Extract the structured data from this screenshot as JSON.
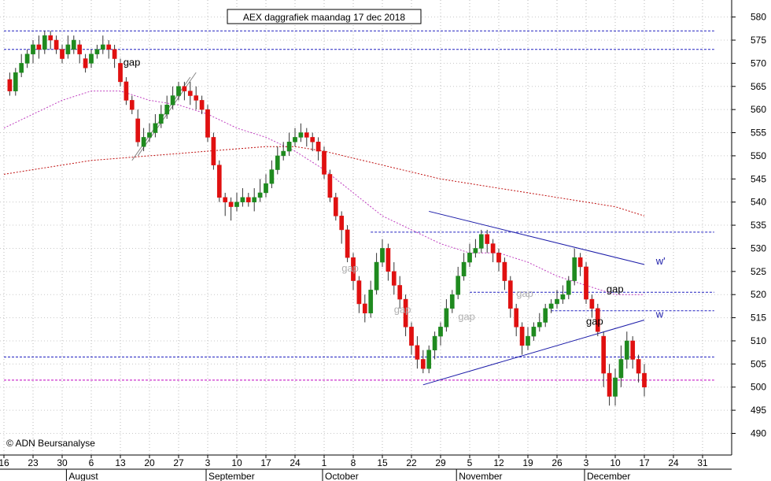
{
  "chart_data": {
    "type": "candlestick",
    "title": "AEX daggrafiek maandag 17 dec 2018",
    "copyright": "© ADN Beursanalyse",
    "ylim": [
      486,
      583
    ],
    "y_ticks": [
      490,
      495,
      500,
      505,
      510,
      515,
      520,
      525,
      530,
      535,
      540,
      545,
      550,
      555,
      560,
      565,
      570,
      575,
      580
    ],
    "date_ticks": [
      {
        "label": "16",
        "i": -1
      },
      {
        "label": "23",
        "i": 4
      },
      {
        "label": "30",
        "i": 9
      },
      {
        "label": "6",
        "i": 14
      },
      {
        "label": "13",
        "i": 19
      },
      {
        "label": "20",
        "i": 24
      },
      {
        "label": "27",
        "i": 29
      },
      {
        "label": "3",
        "i": 34
      },
      {
        "label": "10",
        "i": 39
      },
      {
        "label": "17",
        "i": 44
      },
      {
        "label": "24",
        "i": 49
      },
      {
        "label": "1",
        "i": 54
      },
      {
        "label": "8",
        "i": 59
      },
      {
        "label": "15",
        "i": 64
      },
      {
        "label": "22",
        "i": 69
      },
      {
        "label": "29",
        "i": 74
      },
      {
        "label": "5",
        "i": 79
      },
      {
        "label": "12",
        "i": 84
      },
      {
        "label": "19",
        "i": 89
      },
      {
        "label": "26",
        "i": 94
      },
      {
        "label": "3",
        "i": 99
      },
      {
        "label": "10",
        "i": 104
      },
      {
        "label": "17",
        "i": 109
      },
      {
        "label": "24",
        "i": 114
      },
      {
        "label": "31",
        "i": 119
      }
    ],
    "months": [
      {
        "label": "August",
        "i": 10
      },
      {
        "label": "September",
        "i": 34
      },
      {
        "label": "October",
        "i": 54
      },
      {
        "label": "November",
        "i": 77
      },
      {
        "label": "December",
        "i": 99
      }
    ],
    "candles": [
      [
        566.5,
        564,
        568,
        563
      ],
      [
        564,
        568,
        569,
        563
      ],
      [
        568,
        570,
        572,
        567
      ],
      [
        570,
        572,
        573,
        569
      ],
      [
        572,
        574,
        575,
        570
      ],
      [
        574,
        573,
        576,
        571
      ],
      [
        573,
        576,
        577,
        572
      ],
      [
        576,
        575,
        577,
        573
      ],
      [
        575,
        573,
        576,
        572
      ],
      [
        573,
        571,
        574,
        570
      ],
      [
        572,
        574,
        576,
        571
      ],
      [
        573,
        575,
        576,
        572
      ],
      [
        574,
        572,
        575,
        570
      ],
      [
        571,
        569,
        572,
        568
      ],
      [
        570,
        572,
        573,
        569
      ],
      [
        572,
        573,
        574,
        571
      ],
      [
        573,
        574,
        576,
        572
      ],
      [
        574,
        573,
        575,
        571
      ],
      [
        573,
        571,
        574,
        569
      ],
      [
        570,
        566,
        571,
        565
      ],
      [
        566,
        562,
        567,
        561
      ],
      [
        562,
        560,
        563,
        559
      ],
      [
        558,
        553,
        560,
        552
      ],
      [
        552,
        554,
        556,
        551
      ],
      [
        554,
        555,
        557,
        553
      ],
      [
        555,
        557,
        559,
        554
      ],
      [
        557,
        559,
        561,
        556
      ],
      [
        559,
        561,
        563,
        558
      ],
      [
        561,
        563,
        565,
        560
      ],
      [
        563,
        565,
        566,
        562
      ],
      [
        565,
        564,
        566,
        562
      ],
      [
        564,
        563,
        566,
        561
      ],
      [
        563,
        562,
        565,
        560
      ],
      [
        562,
        560,
        563,
        559
      ],
      [
        560,
        554,
        561,
        553
      ],
      [
        554,
        548,
        555,
        547
      ],
      [
        548,
        541,
        549,
        540
      ],
      [
        541,
        540,
        542,
        537
      ],
      [
        540,
        539,
        541,
        536
      ],
      [
        539,
        540,
        542,
        538
      ],
      [
        540,
        541,
        543,
        539
      ],
      [
        541,
        540,
        542,
        539
      ],
      [
        540,
        541,
        543,
        538
      ],
      [
        541,
        542,
        545,
        540
      ],
      [
        542,
        544,
        546,
        541
      ],
      [
        544,
        547,
        549,
        543
      ],
      [
        547,
        550,
        552,
        546
      ],
      [
        550,
        551,
        553,
        549
      ],
      [
        551,
        553,
        555,
        550
      ],
      [
        553,
        554,
        556,
        552
      ],
      [
        554,
        555,
        557,
        553
      ],
      [
        555,
        554,
        556,
        552
      ],
      [
        554,
        553,
        555,
        551
      ],
      [
        553,
        551,
        554,
        549
      ],
      [
        551,
        546,
        552,
        545
      ],
      [
        546,
        541,
        547,
        540
      ],
      [
        541,
        537,
        542,
        536
      ],
      [
        537,
        534,
        538,
        531
      ],
      [
        534,
        528,
        535,
        527
      ],
      [
        528,
        523,
        529,
        521
      ],
      [
        523,
        518,
        524,
        516
      ],
      [
        518,
        516,
        520,
        514
      ],
      [
        516,
        521,
        523,
        515
      ],
      [
        521,
        527,
        529,
        520
      ],
      [
        527,
        530,
        532,
        526
      ],
      [
        530,
        525,
        531,
        523
      ],
      [
        525,
        522,
        527,
        520
      ],
      [
        522,
        519,
        524,
        517
      ],
      [
        519,
        513,
        520,
        511
      ],
      [
        513,
        509,
        514,
        507
      ],
      [
        509,
        506,
        511,
        504
      ],
      [
        506,
        504,
        508,
        503
      ],
      [
        504,
        508,
        509,
        503
      ],
      [
        508,
        511,
        512,
        506
      ],
      [
        511,
        513,
        514,
        509
      ],
      [
        513,
        517,
        519,
        512
      ],
      [
        517,
        520,
        521,
        516
      ],
      [
        520,
        524,
        526,
        519
      ],
      [
        524,
        527,
        529,
        523
      ],
      [
        527,
        529,
        531,
        526
      ],
      [
        529,
        530,
        532,
        528
      ],
      [
        530,
        533,
        534,
        529
      ],
      [
        533,
        531,
        534,
        529
      ],
      [
        531,
        529,
        532,
        527
      ],
      [
        529,
        527,
        530,
        525
      ],
      [
        527,
        523,
        528,
        521
      ],
      [
        523,
        517,
        524,
        515
      ],
      [
        517,
        513,
        518,
        511
      ],
      [
        513,
        509,
        514,
        507
      ],
      [
        509,
        511,
        513,
        508
      ],
      [
        511,
        513,
        514,
        510
      ],
      [
        513,
        514,
        516,
        512
      ],
      [
        514,
        517,
        518,
        513
      ],
      [
        517,
        518,
        519,
        516
      ],
      [
        518,
        519,
        521,
        517
      ],
      [
        519,
        520,
        522,
        518
      ],
      [
        520,
        523,
        524,
        519
      ],
      [
        523,
        528,
        530,
        522
      ],
      [
        528,
        526,
        529,
        524
      ],
      [
        526,
        519,
        527,
        518
      ],
      [
        519,
        517,
        520,
        515
      ],
      [
        517,
        512,
        518,
        511
      ],
      [
        511,
        503,
        512,
        500
      ],
      [
        503,
        498,
        505,
        496
      ],
      [
        498,
        502,
        504,
        496
      ],
      [
        502,
        506,
        509,
        500
      ],
      [
        506,
        510,
        512,
        504
      ],
      [
        510,
        506,
        511,
        504
      ],
      [
        506,
        503,
        507,
        501
      ],
      [
        503,
        500,
        505,
        498
      ]
    ],
    "ma_short": [
      [
        -1,
        556
      ],
      [
        4,
        559
      ],
      [
        9,
        562
      ],
      [
        14,
        564
      ],
      [
        19,
        564
      ],
      [
        24,
        562
      ],
      [
        29,
        561
      ],
      [
        34,
        559
      ],
      [
        39,
        556
      ],
      [
        44,
        554
      ],
      [
        49,
        551
      ],
      [
        54,
        547
      ],
      [
        59,
        542
      ],
      [
        64,
        537
      ],
      [
        69,
        534
      ],
      [
        74,
        531
      ],
      [
        79,
        529
      ],
      [
        84,
        529
      ],
      [
        89,
        527
      ],
      [
        94,
        524
      ],
      [
        99,
        522
      ],
      [
        104,
        520
      ],
      [
        109,
        520
      ]
    ],
    "ma_long": [
      [
        -1,
        546
      ],
      [
        4,
        547
      ],
      [
        9,
        548
      ],
      [
        14,
        549
      ],
      [
        19,
        549.5
      ],
      [
        24,
        550
      ],
      [
        29,
        550.5
      ],
      [
        34,
        551
      ],
      [
        39,
        551.5
      ],
      [
        44,
        552
      ],
      [
        49,
        552
      ],
      [
        54,
        551
      ],
      [
        59,
        549.5
      ],
      [
        64,
        548
      ],
      [
        69,
        546.5
      ],
      [
        74,
        545
      ],
      [
        79,
        544
      ],
      [
        84,
        543
      ],
      [
        89,
        542
      ],
      [
        94,
        541
      ],
      [
        99,
        540
      ],
      [
        104,
        539
      ],
      [
        109,
        537
      ]
    ],
    "hlines": [
      {
        "y": 577,
        "color": "#2020c0",
        "x_from_i": -1,
        "x_to_i": 121
      },
      {
        "y": 573,
        "color": "#2020c0",
        "x_from_i": -1,
        "x_to_i": 121
      },
      {
        "y": 533.5,
        "color": "#2020c0",
        "x_from_i": 62,
        "x_to_i": 121
      },
      {
        "y": 520.5,
        "color": "#2020c0",
        "x_from_i": 79,
        "x_to_i": 121
      },
      {
        "y": 516.5,
        "color": "#2020c0",
        "x_from_i": 93,
        "x_to_i": 121
      },
      {
        "y": 506.5,
        "color": "#2020c0",
        "x_from_i": -1,
        "x_to_i": 121
      },
      {
        "y": 501.5,
        "color": "#c000c0",
        "x_from_i": -1,
        "x_to_i": 121
      }
    ],
    "trendlines": [
      {
        "from_i": 72,
        "from_y": 538,
        "to_i": 109,
        "to_y": 526.5,
        "color": "#1a1aa8"
      },
      {
        "from_i": 71,
        "from_y": 500.5,
        "to_i": 109,
        "to_y": 514.5,
        "color": "#1a1aa8"
      },
      {
        "from_i": 21,
        "from_y": 549,
        "to_i": 31,
        "to_y": 567,
        "color": "#888888"
      },
      {
        "from_i": 22,
        "from_y": 550,
        "to_i": 32,
        "to_y": 568,
        "color": "#888888"
      }
    ],
    "annotations": [
      {
        "text": "gap",
        "i": 19.5,
        "y": 569.5,
        "color": "#000000"
      },
      {
        "text": "gap",
        "i": 57,
        "y": 525,
        "color": "#b0b0b0"
      },
      {
        "text": "gap",
        "i": 66,
        "y": 516,
        "color": "#b0b0b0"
      },
      {
        "text": "gap",
        "i": 77,
        "y": 514.5,
        "color": "#b0b0b0"
      },
      {
        "text": "gap",
        "i": 87,
        "y": 519.5,
        "color": "#b0b0b0"
      },
      {
        "text": "gap",
        "i": 102.5,
        "y": 520.5,
        "color": "#000000"
      },
      {
        "text": "gap",
        "i": 99,
        "y": 513.5,
        "color": "#000000"
      },
      {
        "text": "w'",
        "i": 111,
        "y": 526.5,
        "color": "#1a1aa8"
      },
      {
        "text": "w",
        "i": 111,
        "y": 515,
        "color": "#1a1aa8"
      }
    ],
    "up_color": "#1f8a1f",
    "down_color": "#e01010",
    "grid": true
  }
}
